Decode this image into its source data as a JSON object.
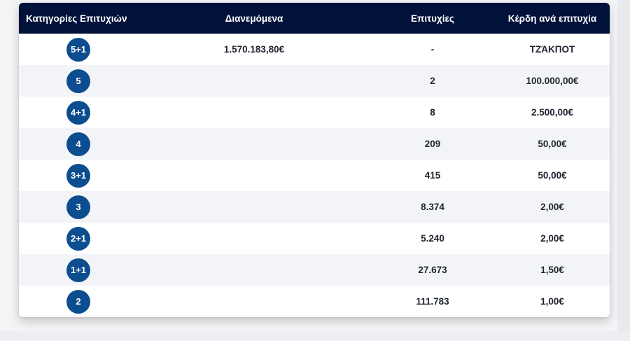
{
  "header": {
    "categories": "Κατηγορίες Επιτυχιών",
    "distributed": "Διανεμόμενα",
    "winners": "Επιτυχίες",
    "prize": "Κέρδη ανά επιτυχία"
  },
  "rows": [
    {
      "category": "5+1",
      "distributed": "1.570.183,80€",
      "winners": "-",
      "prize": "ΤΖΆΚΠΟΤ"
    },
    {
      "category": "5",
      "distributed": "",
      "winners": "2",
      "prize": "100.000,00€"
    },
    {
      "category": "4+1",
      "distributed": "",
      "winners": "8",
      "prize": "2.500,00€"
    },
    {
      "category": "4",
      "distributed": "",
      "winners": "209",
      "prize": "50,00€"
    },
    {
      "category": "3+1",
      "distributed": "",
      "winners": "415",
      "prize": "50,00€"
    },
    {
      "category": "3",
      "distributed": "",
      "winners": "8.374",
      "prize": "2,00€"
    },
    {
      "category": "2+1",
      "distributed": "",
      "winners": "5.240",
      "prize": "2,00€"
    },
    {
      "category": "1+1",
      "distributed": "",
      "winners": "27.673",
      "prize": "1,50€"
    },
    {
      "category": "2",
      "distributed": "",
      "winners": "111.783",
      "prize": "1,00€"
    }
  ],
  "colors": {
    "header_bg": "#00113a",
    "ball_bg": "#0c4d8f",
    "row_alt_bg": "#f3f4f7"
  }
}
